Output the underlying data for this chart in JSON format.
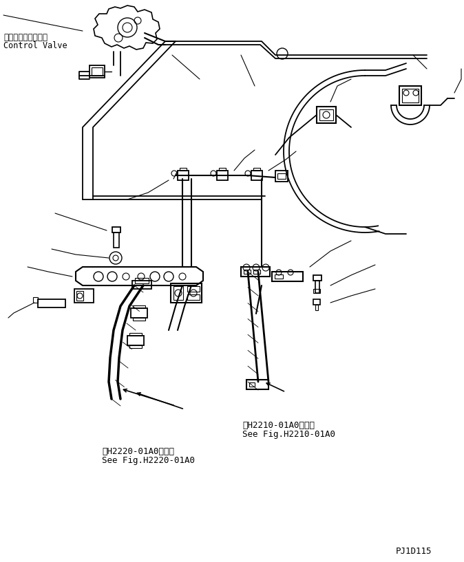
{
  "bg_color": "#ffffff",
  "line_color": "#000000",
  "fig_width": 6.74,
  "fig_height": 8.17,
  "dpi": 100,
  "label_top_japanese": "コントロールバルブ",
  "label_top_english": "Control Valve",
  "ref1_japanese": "第H2220-01A0図参照",
  "ref1_english": "See Fig.H2220-01A0",
  "ref2_japanese": "第H2210-01A0図参照",
  "ref2_english": "See Fig.H2210-01A0",
  "code": "PJ1D115"
}
